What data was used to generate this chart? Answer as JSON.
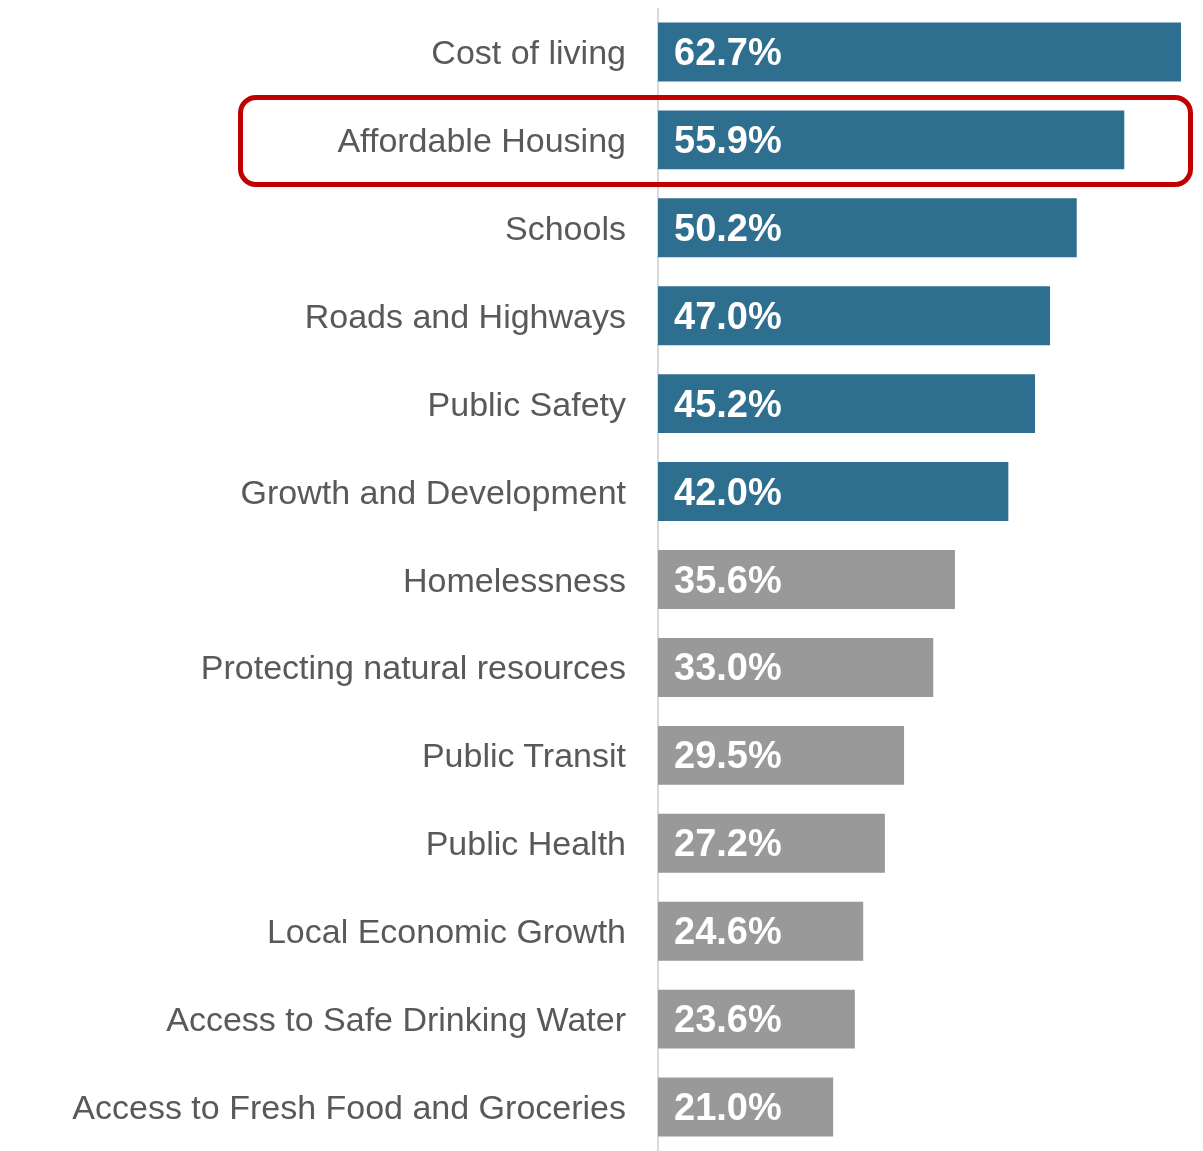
{
  "chart_data": {
    "type": "bar",
    "orientation": "horizontal",
    "categories": [
      "Cost of living",
      "Affordable Housing",
      "Schools",
      "Roads and Highways",
      "Public Safety",
      "Growth and Development",
      "Homelessness",
      "Protecting natural resources",
      "Public Transit",
      "Public Health",
      "Local Economic Growth",
      "Access to Safe Drinking Water",
      "Access to Fresh Food and Groceries"
    ],
    "values": [
      62.7,
      55.9,
      50.2,
      47.0,
      45.2,
      42.0,
      35.6,
      33.0,
      29.5,
      27.2,
      24.6,
      23.6,
      21.0
    ],
    "value_labels": [
      "62.7%",
      "55.9%",
      "50.2%",
      "47.0%",
      "45.2%",
      "42.0%",
      "35.6%",
      "33.0%",
      "29.5%",
      "27.2%",
      "24.6%",
      "23.6%",
      "21.0%"
    ],
    "colors": [
      "#2e6e8e",
      "#2e6e8e",
      "#2e6e8e",
      "#2e6e8e",
      "#2e6e8e",
      "#2e6e8e",
      "#999999",
      "#999999",
      "#999999",
      "#999999",
      "#999999",
      "#999999",
      "#999999"
    ]
  }
}
